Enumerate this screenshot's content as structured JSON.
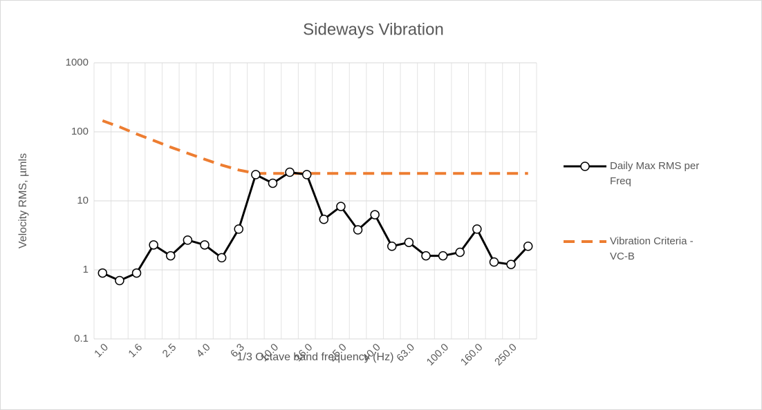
{
  "chart_data": {
    "type": "line",
    "title": "Sideways Vibration",
    "x_label": "1/3 Octave band frequency (Hz)",
    "y_label": "Velocity RMS, µmls",
    "categories": [
      "1.0",
      null,
      "1.6",
      null,
      "2.5",
      null,
      "4.0",
      null,
      "6.3",
      null,
      "10.0",
      null,
      "16.0",
      null,
      "25.0",
      null,
      "40.0",
      null,
      "63.0",
      null,
      "100.0",
      null,
      "160.0",
      null,
      "250.0",
      null
    ],
    "series": [
      {
        "name": "Daily Max RMS per Freq",
        "color": "#000000",
        "dash": "solid",
        "marker": true,
        "values": [
          0.9,
          0.7,
          0.9,
          2.3,
          1.6,
          2.7,
          2.3,
          1.5,
          3.9,
          24,
          18,
          26,
          24,
          5.4,
          8.3,
          3.8,
          6.3,
          2.2,
          2.5,
          1.6,
          1.6,
          1.8,
          3.9,
          1.3,
          1.2,
          2.2
        ]
      },
      {
        "name": "Vibration Criteria - VC-B",
        "color": "#ed7d31",
        "dash": "dashed",
        "marker": false,
        "values": [
          145,
          118,
          93,
          75,
          60,
          49,
          40,
          33,
          28,
          25,
          25,
          25,
          25,
          25,
          25,
          25,
          25,
          25,
          25,
          25,
          25,
          25,
          25,
          25,
          25,
          25
        ]
      }
    ],
    "yscale": "log",
    "ylim": [
      0.1,
      1000
    ],
    "yticks": [
      0.1,
      1,
      10,
      100,
      1000
    ],
    "grid": true,
    "legend": "right"
  }
}
